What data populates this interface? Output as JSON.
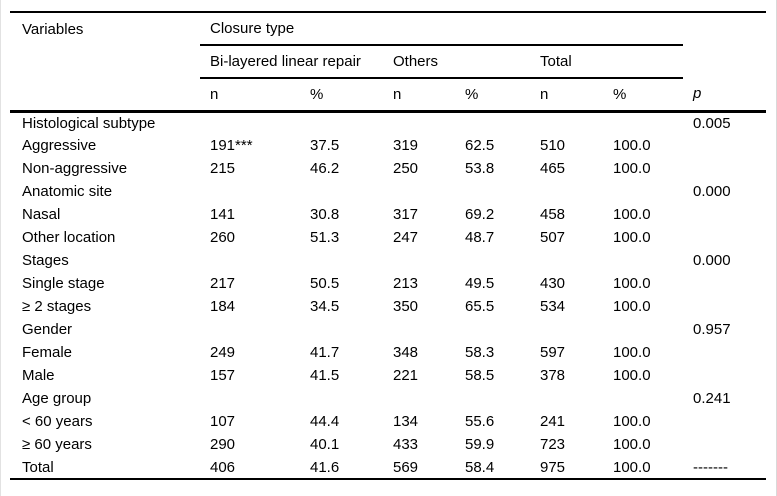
{
  "table": {
    "headers": {
      "variables": "Variables",
      "closure_type": "Closure type",
      "group1": "Bi-layered linear repair",
      "group2": "Others",
      "group3": "Total",
      "n": "n",
      "pct": "%",
      "p": "p"
    },
    "rows": [
      {
        "label": "Histological subtype",
        "n1": "",
        "pct1": "",
        "n2": "",
        "pct2": "",
        "n3": "",
        "pct3": "",
        "p": "0.005",
        "bold": false
      },
      {
        "label": "Aggressive",
        "n1": "191***",
        "pct1": "37.5",
        "n2": "319",
        "pct2": "62.5",
        "n3": "510",
        "pct3": "100.0",
        "p": "",
        "bold": false
      },
      {
        "label": "Non-aggressive",
        "n1": "215",
        "pct1": "46.2",
        "n2": "250",
        "pct2": "53.8",
        "n3": "465",
        "pct3": "100.0",
        "p": "",
        "bold": false
      },
      {
        "label": "Anatomic site",
        "n1": "",
        "pct1": "",
        "n2": "",
        "pct2": "",
        "n3": "",
        "pct3": "",
        "p": "0.000",
        "bold": false
      },
      {
        "label": "Nasal",
        "n1": "141",
        "pct1": "30.8",
        "n2": "317",
        "pct2": "69.2",
        "n3": "458",
        "pct3": "100.0",
        "p": "",
        "bold": false
      },
      {
        "label": "Other location",
        "n1": "260",
        "pct1": "51.3",
        "n2": "247",
        "pct2": "48.7",
        "n3": "507",
        "pct3": "100.0",
        "p": "",
        "bold": false
      },
      {
        "label": "Stages",
        "n1": "",
        "pct1": "",
        "n2": "",
        "pct2": "",
        "n3": "",
        "pct3": "",
        "p": "0.000",
        "bold": false
      },
      {
        "label": "Single stage",
        "n1": "217",
        "pct1": "50.5",
        "n2": "213",
        "pct2": "49.5",
        "n3": "430",
        "pct3": "100.0",
        "p": "",
        "bold": false
      },
      {
        "label": "≥ 2 stages",
        "n1": "184",
        "pct1": "34.5",
        "n2": "350",
        "pct2": "65.5",
        "n3": "534",
        "pct3": "100.0",
        "p": "",
        "bold": false
      },
      {
        "label": "Gender",
        "n1": "",
        "pct1": "",
        "n2": "",
        "pct2": "",
        "n3": "",
        "pct3": "",
        "p": "0.957",
        "bold": false
      },
      {
        "label": "Female",
        "n1": "249",
        "pct1": "41.7",
        "n2": "348",
        "pct2": "58.3",
        "n3": "597",
        "pct3": "100.0",
        "p": "",
        "bold": false
      },
      {
        "label": "Male",
        "n1": "157",
        "pct1": "41.5",
        "n2": "221",
        "pct2": "58.5",
        "n3": "378",
        "pct3": "100.0",
        "p": "",
        "bold": false
      },
      {
        "label": "Age group",
        "n1": "",
        "pct1": "",
        "n2": "",
        "pct2": "",
        "n3": "",
        "pct3": "",
        "p": "0.241",
        "bold": false
      },
      {
        "label": "< 60 years",
        "n1": "107",
        "pct1": "44.4",
        "n2": "134",
        "pct2": "55.6",
        "n3": "241",
        "pct3": "100.0",
        "p": "",
        "bold": false
      },
      {
        "label": "≥ 60 years",
        "n1": "290",
        "pct1": "40.1",
        "n2": "433",
        "pct2": "59.9",
        "n3": "723",
        "pct3": "100.0",
        "p": "",
        "bold": false
      },
      {
        "label": "Total",
        "n1": "406",
        "pct1": "41.6",
        "n2": "569",
        "pct2": "58.4",
        "n3": "975",
        "pct3": "100.0",
        "p": "-------",
        "bold": true
      }
    ]
  }
}
